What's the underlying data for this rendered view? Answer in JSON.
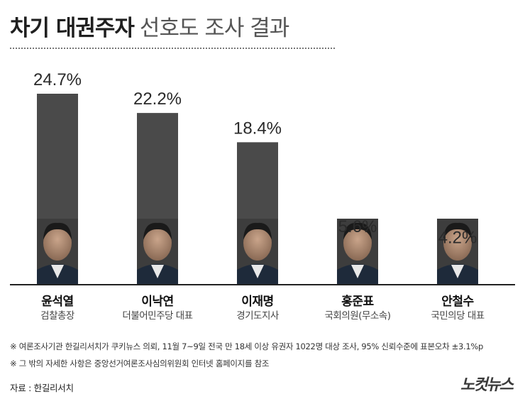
{
  "header": {
    "title_bold": "차기 대권주자",
    "title_light": "선호도 조사 결과"
  },
  "chart_data": {
    "type": "bar",
    "title": "차기 대권주자 선호도 조사 결과",
    "categories": [
      "윤석열",
      "이낙연",
      "이재명",
      "홍준표",
      "안철수"
    ],
    "roles": [
      "검찰총장",
      "더불어민주당 대표",
      "경기도지사",
      "국회의원(무소속)",
      "국민의당 대표"
    ],
    "values": [
      24.7,
      22.2,
      18.4,
      5.6,
      4.2
    ],
    "value_labels": [
      "24.7%",
      "22.2%",
      "18.4%",
      "5.6%",
      "4.2%"
    ],
    "unit": "%",
    "ylim": [
      0,
      24.7
    ],
    "grid": false,
    "legend": "none",
    "bar_color": "#4a4a4a"
  },
  "notes": [
    "※ 여론조사기관 한길리서치가 쿠키뉴스 의뢰, 11월 7~9일 전국 만 18세 이상 유권자 1022명 대상 조사, 95% 신뢰수준에 표본오차 ±3.1%p",
    "※ 그 밖의 자세한 사항은 중앙선거여론조사심의위원회 인터넷 홈페이지를 참조"
  ],
  "source": "자료 : 한길리서치",
  "logo": "노컷뉴스"
}
